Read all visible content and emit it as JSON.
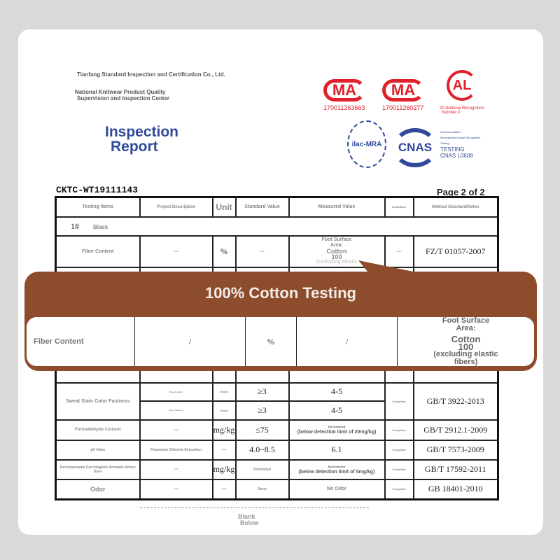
{
  "header": {
    "company": "Tianfang Standard Inspection and Certification Co., Ltd.",
    "center_line1": "National Knitwear Product Quality",
    "center_line2": "Supervision and Inspection Center",
    "title_line1": "Inspection",
    "title_line2": "Report"
  },
  "logos": {
    "cma1": {
      "text": "MA",
      "number": "170011263663"
    },
    "cma2": {
      "text": "MA",
      "number": "170011260277"
    },
    "cal": {
      "text": "AL",
      "line1": "20 National Recognition",
      "line2": "Number 0"
    },
    "ilac": "ilac-MRA",
    "cnas": "CNAS",
    "cnas_notes": [
      "Intl Accreditation",
      "International Mutual Recognition",
      "Testing"
    ],
    "cnas_testing": "TESTING",
    "cnas_number": "CNAS L0608",
    "colors": {
      "red": "#e0202a",
      "blue": "#2f4a9a"
    }
  },
  "report_no": "CKTC-WT19111143",
  "page": "Page 2 of 2",
  "table": {
    "headers": [
      "Testing Items",
      "Project Description",
      "Unit",
      "Standard Value",
      "Measured Value",
      "Evaluation",
      "Method Standard/Notes"
    ],
    "sample": {
      "no": "1#",
      "color": "Black"
    },
    "fiber_row": {
      "item": "Fiber Content",
      "desc": "---",
      "unit": "%",
      "std": "---",
      "measured_l1": "Foot Surface",
      "measured_l2": "Area:",
      "measured_l3": "Cotton",
      "measured_l4": "100",
      "measured_l5": "(excluding elastic",
      "eval": "---",
      "method": "FZ/T 01057-2007"
    },
    "sweat": {
      "item": "Sweat Stain Color Fastness",
      "sub1": "Discoloration",
      "sub2": "Color Staining",
      "unit": "Grade",
      "std": "≥3",
      "measured": "4-5",
      "eval": "Compliant",
      "method": "GB/T 3922-2013"
    },
    "formaldehyde": {
      "item": "Formaldehyde Content",
      "desc": "---",
      "unit": "mg/kg",
      "std": "≤75",
      "measured_top": "Not Detected",
      "measured": "(below detection limit of 20mg/kg)",
      "eval": "Compliant",
      "method": "GB/T 2912.1-2009"
    },
    "ph": {
      "item": "pH Value",
      "desc": "Potassium Chloride Extraction",
      "unit": "---",
      "std": "4.0~8.5",
      "measured": "6.1",
      "eval": "Compliant",
      "method": "GB/T 7573-2009"
    },
    "amine": {
      "item": "Decomposable Carcinogenic Aromatic Amine Dyes",
      "desc": "---",
      "unit": "mg/kg",
      "std": "Prohibited",
      "measured_top": "Not Detected",
      "measured": "(below detection limit of 5mg/kg)",
      "eval": "Compliant",
      "method": "GB/T 17592-2011"
    },
    "odor": {
      "item": "Odor",
      "desc": "---",
      "unit": "---",
      "std": "None",
      "measured": "No Odor",
      "eval": "Compliant",
      "method": "GB 18401-2010"
    }
  },
  "footer": {
    "line1": "Blank",
    "line2": "Below"
  },
  "overlay": {
    "title": "100% Cotton Testing",
    "item": "Fiber Content",
    "desc": "/",
    "unit": "%",
    "std": "/",
    "measured_l1": "Foot Surface",
    "measured_l2": "Area:",
    "measured_l3": "Cotton",
    "measured_l4": "100",
    "measured_l5": "(excluding elastic",
    "measured_l6": "fibers)",
    "color": "#8d4d2c"
  }
}
